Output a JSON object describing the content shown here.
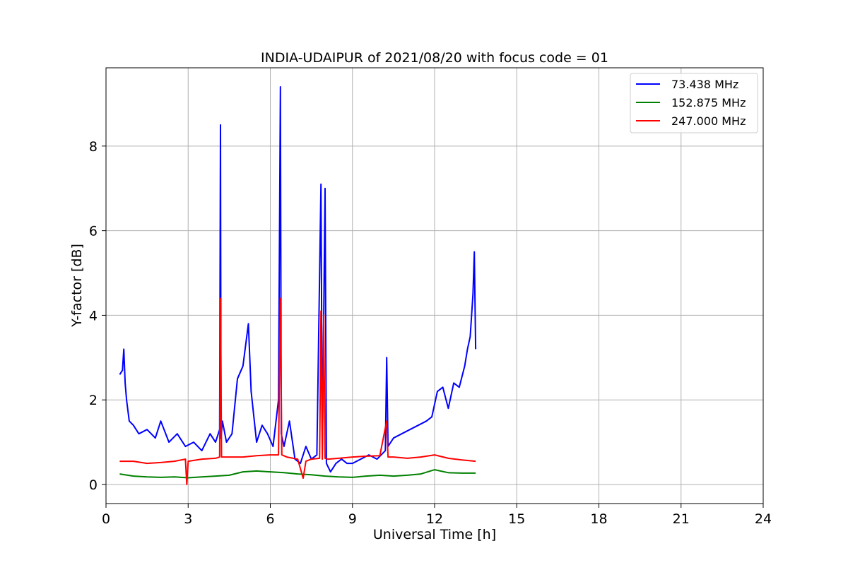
{
  "chart_data": {
    "type": "line",
    "title": "INDIA-UDAIPUR of 2021/08/20 with focus code = 01",
    "xlabel": "Universal Time [h]",
    "ylabel": "Y-factor [dB]",
    "xlim": [
      0,
      24
    ],
    "ylim": [
      -0.45,
      9.85
    ],
    "xticks": [
      0,
      3,
      6,
      9,
      12,
      15,
      18,
      21,
      24
    ],
    "xtick_labels": [
      "0",
      "3",
      "6",
      "9",
      "12",
      "15",
      "18",
      "21",
      "24"
    ],
    "yticks": [
      0,
      2,
      4,
      6,
      8
    ],
    "ytick_labels": [
      "0",
      "2",
      "4",
      "6",
      "8"
    ],
    "grid": true,
    "legend_position": "top-right",
    "series": [
      {
        "name": " 73.438 MHz",
        "color": "#0000ff",
        "x": [
          0.5,
          0.6,
          0.65,
          0.7,
          0.75,
          0.85,
          1.0,
          1.2,
          1.5,
          1.8,
          2.0,
          2.3,
          2.6,
          2.9,
          3.2,
          3.5,
          3.8,
          4.0,
          4.15,
          4.18,
          4.2,
          4.25,
          4.4,
          4.6,
          4.8,
          5.0,
          5.2,
          5.3,
          5.5,
          5.7,
          5.9,
          6.1,
          6.3,
          6.37,
          6.4,
          6.5,
          6.7,
          6.9,
          7.1,
          7.3,
          7.5,
          7.7,
          7.85,
          7.9,
          8.0,
          8.05,
          8.2,
          8.4,
          8.6,
          8.8,
          9.0,
          9.3,
          9.6,
          9.9,
          10.2,
          10.25,
          10.3,
          10.5,
          10.8,
          11.1,
          11.4,
          11.7,
          11.9,
          12.1,
          12.3,
          12.5,
          12.7,
          12.9,
          13.1,
          13.2,
          13.3,
          13.4,
          13.45,
          13.5
        ],
        "y": [
          2.6,
          2.7,
          3.2,
          2.4,
          2.0,
          1.5,
          1.4,
          1.2,
          1.3,
          1.1,
          1.5,
          1.0,
          1.2,
          0.9,
          1.0,
          0.8,
          1.2,
          1.0,
          1.3,
          8.5,
          1.1,
          1.5,
          1.0,
          1.2,
          2.5,
          2.8,
          3.8,
          2.2,
          1.0,
          1.4,
          1.2,
          0.9,
          2.0,
          9.4,
          1.2,
          0.9,
          1.5,
          0.6,
          0.5,
          0.9,
          0.6,
          0.7,
          7.1,
          0.8,
          7.0,
          0.5,
          0.3,
          0.5,
          0.6,
          0.5,
          0.5,
          0.6,
          0.7,
          0.6,
          0.8,
          3.0,
          0.9,
          1.1,
          1.2,
          1.3,
          1.4,
          1.5,
          1.6,
          2.2,
          2.3,
          1.8,
          2.4,
          2.3,
          2.8,
          3.2,
          3.5,
          4.5,
          5.5,
          3.2
        ]
      },
      {
        "name": "152.875 MHz",
        "color": "#008000",
        "x": [
          0.5,
          1.0,
          1.5,
          2.0,
          2.5,
          3.0,
          3.5,
          4.0,
          4.5,
          5.0,
          5.5,
          6.0,
          6.5,
          7.0,
          7.5,
          8.0,
          8.5,
          9.0,
          9.5,
          10.0,
          10.5,
          11.0,
          11.5,
          12.0,
          12.5,
          13.0,
          13.5
        ],
        "y": [
          0.25,
          0.2,
          0.18,
          0.17,
          0.18,
          0.16,
          0.18,
          0.2,
          0.22,
          0.3,
          0.32,
          0.3,
          0.28,
          0.25,
          0.23,
          0.2,
          0.18,
          0.17,
          0.2,
          0.22,
          0.2,
          0.22,
          0.25,
          0.35,
          0.28,
          0.27,
          0.27
        ]
      },
      {
        "name": "247.000 MHz",
        "color": "#ff0000",
        "x": [
          0.5,
          1.0,
          1.5,
          2.0,
          2.5,
          2.9,
          2.95,
          3.0,
          3.5,
          4.0,
          4.15,
          4.18,
          4.22,
          4.5,
          5.0,
          5.5,
          6.0,
          6.3,
          6.37,
          6.42,
          6.6,
          7.0,
          7.2,
          7.3,
          7.5,
          7.8,
          7.85,
          7.9,
          7.95,
          8.0,
          8.1,
          8.5,
          9.0,
          9.5,
          10.0,
          10.25,
          10.3,
          10.5,
          11.0,
          11.5,
          12.0,
          12.5,
          13.0,
          13.5
        ],
        "y": [
          0.55,
          0.55,
          0.5,
          0.52,
          0.55,
          0.6,
          0.0,
          0.55,
          0.6,
          0.62,
          0.65,
          4.4,
          0.65,
          0.65,
          0.65,
          0.68,
          0.7,
          0.7,
          4.4,
          0.7,
          0.65,
          0.6,
          0.15,
          0.55,
          0.6,
          0.62,
          4.1,
          0.6,
          4.0,
          0.62,
          0.6,
          0.62,
          0.65,
          0.67,
          0.68,
          1.5,
          0.65,
          0.65,
          0.62,
          0.65,
          0.7,
          0.62,
          0.58,
          0.55
        ]
      }
    ]
  }
}
